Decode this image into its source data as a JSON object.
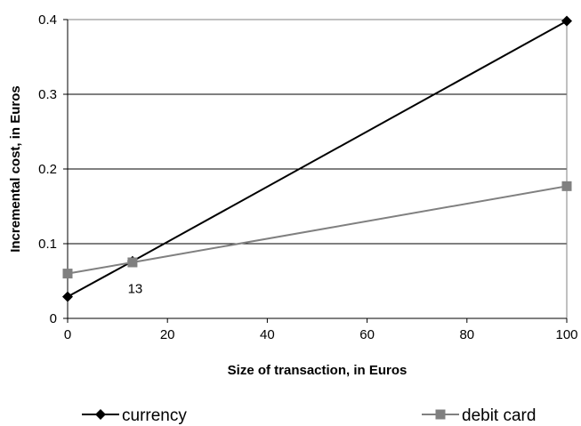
{
  "chart_data": {
    "type": "line",
    "title": "",
    "xlabel": "Size of transaction, in Euros",
    "ylabel": "Incremental cost, in Euros",
    "xlim": [
      0,
      100
    ],
    "ylim": [
      0,
      0.4
    ],
    "xticks": [
      0,
      20,
      40,
      60,
      80,
      100
    ],
    "yticks": [
      0,
      0.1,
      0.2,
      0.3,
      0.4
    ],
    "grid": "horizontal",
    "legend_position": "bottom",
    "series": [
      {
        "name": "currency",
        "color": "#000000",
        "marker": "diamond",
        "x": [
          0,
          13,
          100
        ],
        "y": [
          0.029,
          0.0765,
          0.398
        ]
      },
      {
        "name": "debit card",
        "color": "#808080",
        "marker": "square",
        "x": [
          0,
          13,
          100
        ],
        "y": [
          0.06,
          0.075,
          0.177
        ]
      }
    ],
    "annotations": [
      {
        "text": "13",
        "x": 13,
        "y": 0.0765
      }
    ]
  }
}
